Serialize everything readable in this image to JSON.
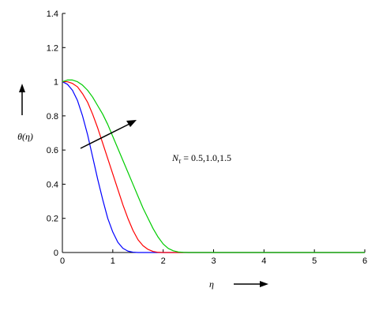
{
  "chart_data": {
    "type": "line",
    "xlabel": "η",
    "ylabel": "θ(η)",
    "xlim": [
      0,
      6
    ],
    "ylim": [
      0,
      1.4
    ],
    "xticks": [
      "0",
      "1",
      "2",
      "3",
      "4",
      "5",
      "6"
    ],
    "yticks": [
      "0",
      "0.2",
      "0.4",
      "0.6",
      "0.8",
      "1",
      "1.2",
      "1.4"
    ],
    "grid": false,
    "annotation": {
      "symbol": "N",
      "subscript": "τ",
      "text": " = 0.5,1.0,1.5",
      "arrow": "increasing, pointing toward upper right across curves"
    },
    "series": [
      {
        "color": "#0000ff",
        "x": [
          0,
          0.1,
          0.2,
          0.3,
          0.4,
          0.5,
          0.6,
          0.7,
          0.8,
          0.9,
          1.0,
          1.1,
          1.2,
          1.3,
          1.4,
          1.5,
          1.6,
          1.8,
          2.0,
          6.0
        ],
        "y": [
          1.0,
          0.985,
          0.95,
          0.89,
          0.8,
          0.69,
          0.56,
          0.43,
          0.31,
          0.2,
          0.12,
          0.06,
          0.025,
          0.008,
          0.002,
          0.0,
          0.0,
          0.0,
          0.0,
          0.0
        ]
      },
      {
        "color": "#ff0000",
        "x": [
          0,
          0.1,
          0.2,
          0.3,
          0.4,
          0.5,
          0.6,
          0.7,
          0.8,
          0.9,
          1.0,
          1.1,
          1.2,
          1.3,
          1.4,
          1.5,
          1.6,
          1.7,
          1.8,
          1.9,
          2.0,
          2.2,
          2.5,
          6.0
        ],
        "y": [
          1.0,
          1.0,
          0.99,
          0.97,
          0.93,
          0.88,
          0.81,
          0.73,
          0.64,
          0.55,
          0.46,
          0.37,
          0.28,
          0.2,
          0.13,
          0.075,
          0.04,
          0.018,
          0.006,
          0.001,
          0.0,
          0.0,
          0.0,
          0.0
        ]
      },
      {
        "color": "#00cc00",
        "x": [
          0,
          0.1,
          0.2,
          0.3,
          0.4,
          0.5,
          0.6,
          0.7,
          0.8,
          0.9,
          1.0,
          1.1,
          1.2,
          1.3,
          1.4,
          1.5,
          1.6,
          1.7,
          1.8,
          1.9,
          2.0,
          2.1,
          2.2,
          2.3,
          2.4,
          2.5,
          2.8,
          6.0
        ],
        "y": [
          1.0,
          1.01,
          1.01,
          1.0,
          0.98,
          0.95,
          0.91,
          0.86,
          0.81,
          0.75,
          0.68,
          0.61,
          0.54,
          0.47,
          0.4,
          0.33,
          0.26,
          0.2,
          0.14,
          0.09,
          0.05,
          0.024,
          0.01,
          0.003,
          0.001,
          0.0,
          0.0,
          0.0
        ]
      }
    ]
  }
}
